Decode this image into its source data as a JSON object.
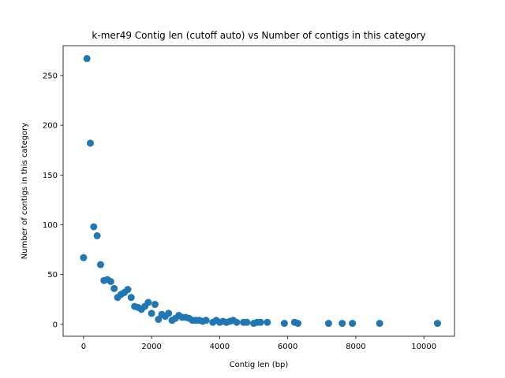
{
  "chart_data": {
    "type": "scatter",
    "title": "k-mer49 Contig len (cutoff auto) vs Number of contigs in this category",
    "xlabel": "Contig len (bp)",
    "ylabel": "Number of contigs in this category",
    "xlim": [
      -600,
      10900
    ],
    "ylim": [
      -12,
      280
    ],
    "xticks": [
      0,
      2000,
      4000,
      6000,
      8000,
      10000
    ],
    "yticks": [
      0,
      50,
      100,
      150,
      200,
      250
    ],
    "grid": false,
    "color": "#1f77b4",
    "series": [
      {
        "x": [
          0,
          100,
          200,
          300,
          400,
          500,
          600,
          700,
          800,
          900,
          1000,
          1100,
          1200,
          1300,
          1400,
          1500,
          1600,
          1700,
          1800,
          1900,
          2000,
          2100,
          2200,
          2300,
          2400,
          2500,
          2600,
          2700,
          2800,
          2900,
          3000,
          3100,
          3200,
          3300,
          3400,
          3500,
          3600,
          3800,
          3900,
          4000,
          4100,
          4200,
          4300,
          4400,
          4500,
          4700,
          4800,
          5000,
          5100,
          5200,
          5400,
          5900,
          6200,
          6300,
          7200,
          7600,
          7900,
          8700,
          10400
        ],
        "y": [
          67,
          267,
          182,
          98,
          89,
          60,
          44,
          45,
          43,
          36,
          27,
          30,
          32,
          35,
          27,
          18,
          17,
          15,
          18,
          22,
          11,
          20,
          5,
          10,
          8,
          11,
          4,
          6,
          9,
          7,
          7,
          6,
          4,
          4,
          4,
          3,
          4,
          2,
          4,
          2,
          3,
          2,
          3,
          4,
          2,
          2,
          2,
          1,
          2,
          2,
          2,
          1,
          2,
          1,
          1,
          1,
          1,
          1,
          1
        ]
      }
    ]
  }
}
